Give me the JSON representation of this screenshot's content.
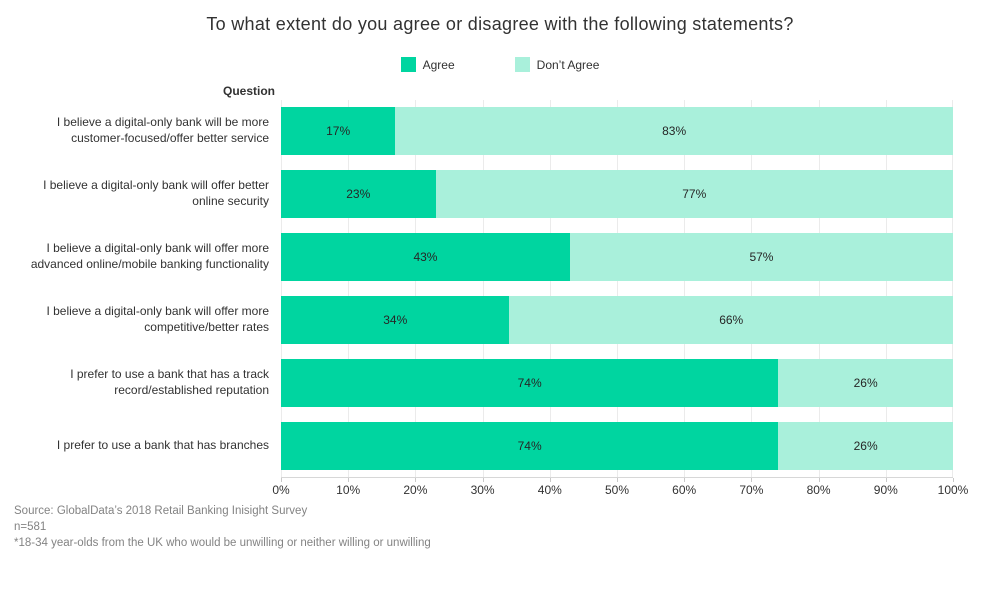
{
  "title": "To what extent do you agree or disagree with the following statements?",
  "row_header": "Question",
  "legend": [
    {
      "label": "Agree",
      "color": "#00d5a0"
    },
    {
      "label": "Don’t Agree",
      "color": "#a9f0db"
    }
  ],
  "chart_data": {
    "type": "bar",
    "orientation": "horizontal",
    "stacked": true,
    "title": "To what extent do you agree or disagree with the following statements?",
    "xlabel": "",
    "ylabel": "Question",
    "xlim": [
      0,
      100
    ],
    "x_ticks": [
      "0%",
      "10%",
      "20%",
      "30%",
      "40%",
      "50%",
      "60%",
      "70%",
      "80%",
      "90%",
      "100%"
    ],
    "grid": "vertical",
    "legend_position": "top-center",
    "categories": [
      "I believe a digital-only bank will be more customer-focused/offer better service",
      "I believe a digital-only bank will offer better online security",
      "I believe a digital-only bank will offer more advanced online/mobile banking functionality",
      "I believe a digital-only bank will offer more competitive/better rates",
      "I prefer to use a bank that has a track record/established reputation",
      "I prefer to use a bank that has branches"
    ],
    "series": [
      {
        "name": "Agree",
        "color": "#00d5a0",
        "values": [
          17,
          23,
          43,
          34,
          74,
          74
        ]
      },
      {
        "name": "Don’t Agree",
        "color": "#a9f0db",
        "values": [
          83,
          77,
          57,
          66,
          26,
          26
        ]
      }
    ],
    "value_label_suffix": "%"
  },
  "colors": {
    "agree": "#00d5a0",
    "dont_agree": "#a9f0db",
    "gridline": "#ebebeb",
    "axis_line": "#d7d7d7",
    "text": "#323232",
    "footer_text": "#838383"
  },
  "footer": {
    "source": "Source: GlobalData’s 2018 Retail Banking Inisight Survey",
    "sample_size": "n=581",
    "note": "*18-34 year-olds from the UK who would be unwilling or neither willing or unwilling"
  }
}
